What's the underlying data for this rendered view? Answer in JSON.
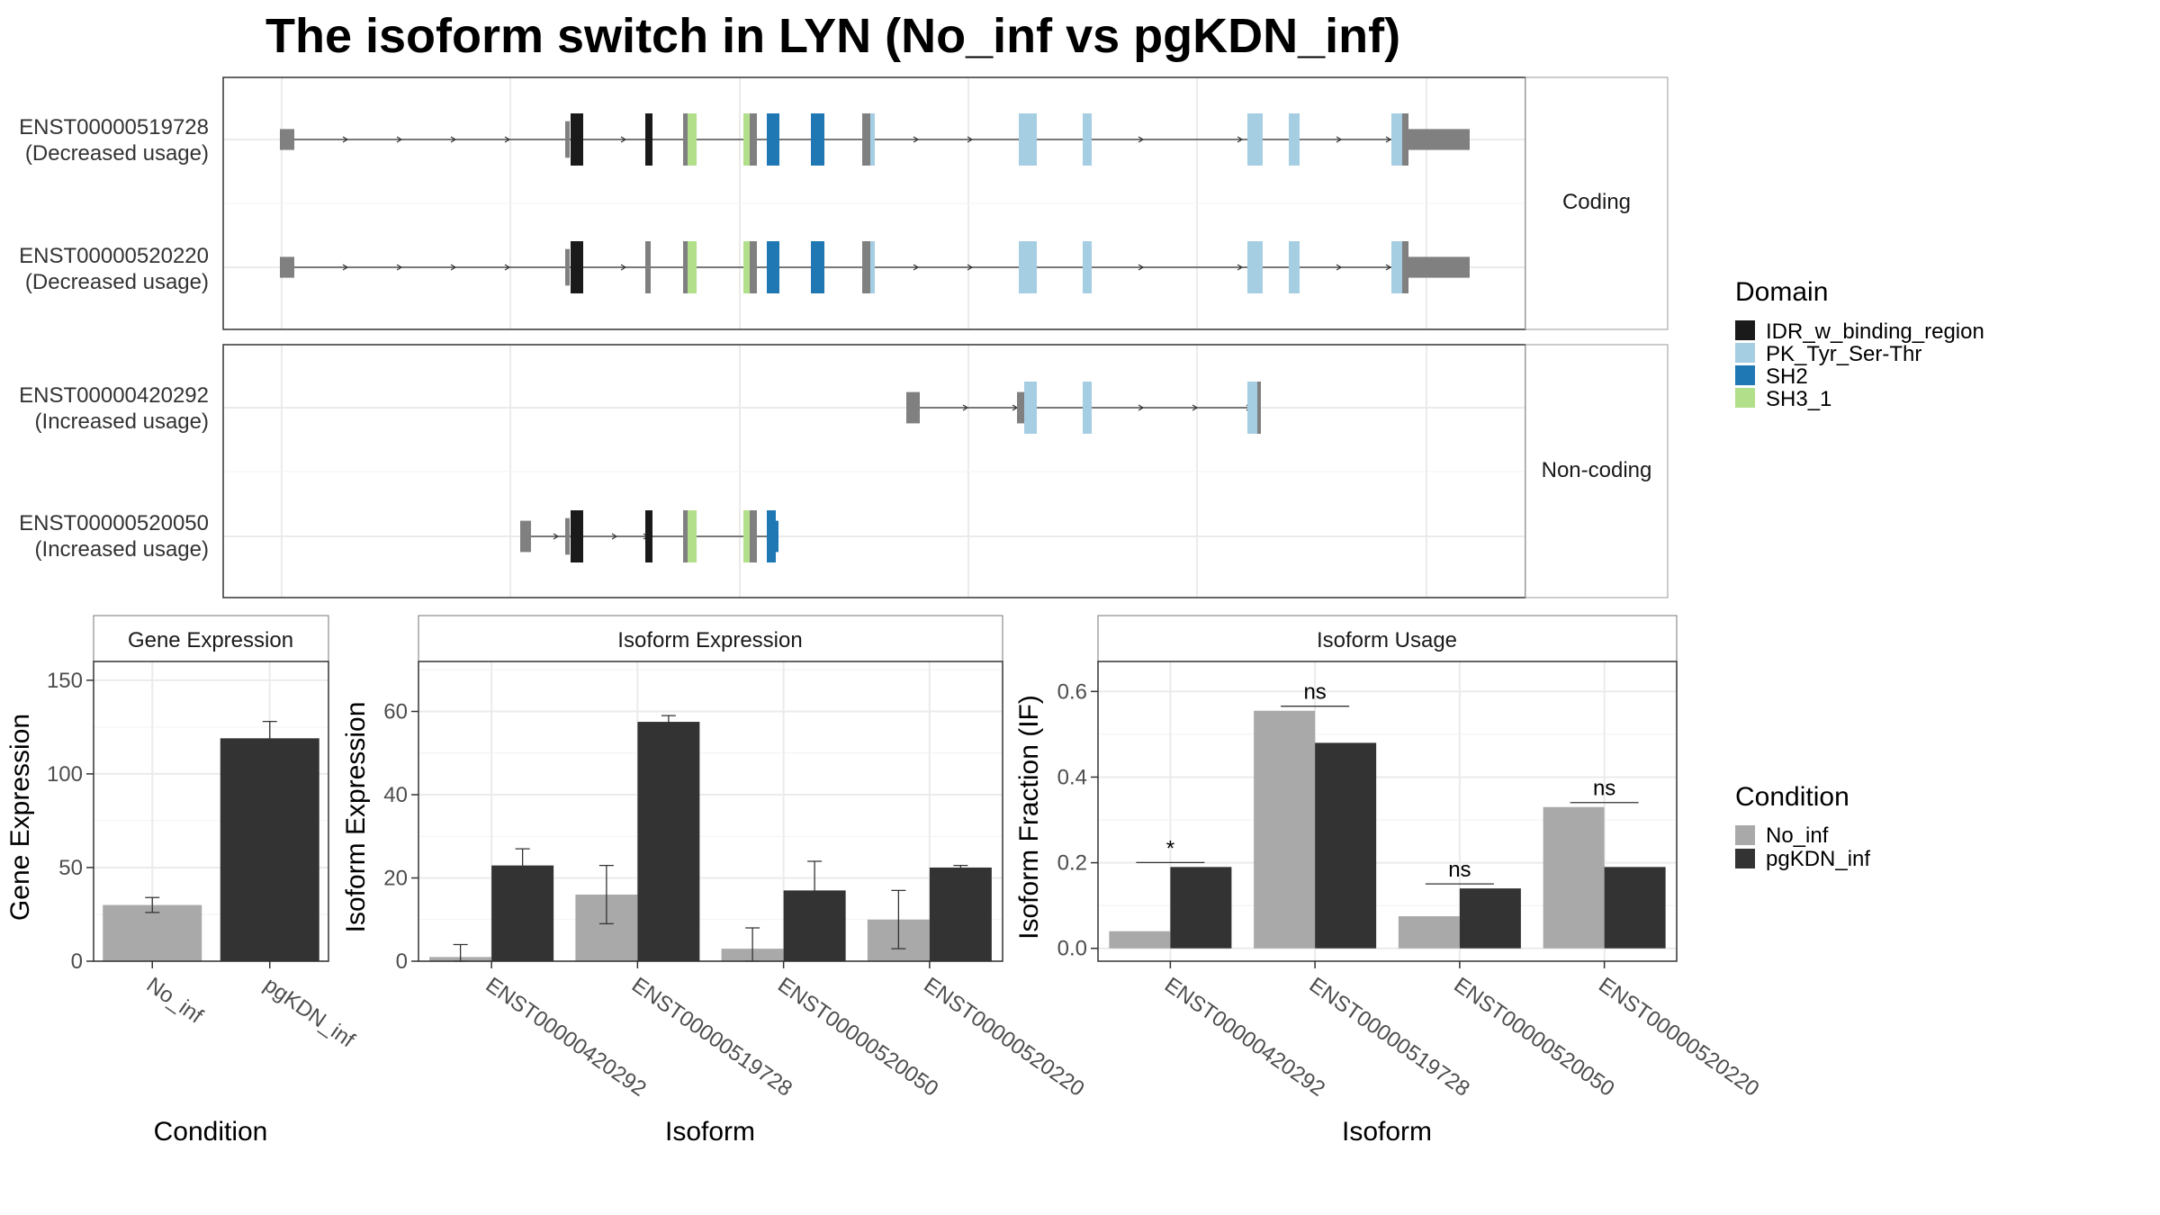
{
  "title": "The isoform switch in LYN (No_inf vs pgKDN_inf)",
  "structure": {
    "transcripts": [
      {
        "id": "ENST00000519728",
        "usage": "(Decreased usage)",
        "group": "Coding"
      },
      {
        "id": "ENST00000520220",
        "usage": "(Decreased usage)",
        "group": "Coding"
      },
      {
        "id": "ENST00000420292",
        "usage": "(Increased usage)",
        "group": "Non-coding"
      },
      {
        "id": "ENST00000520050",
        "usage": "(Increased usage)",
        "group": "Non-coding"
      }
    ],
    "facets": [
      "Coding",
      "Non-coding"
    ]
  },
  "domain_legend": {
    "title": "Domain",
    "items": [
      {
        "label": "IDR_w_binding_region",
        "color": "#1a1a1a"
      },
      {
        "label": "PK_Tyr_Ser-Thr",
        "color": "#a6cee3"
      },
      {
        "label": "SH2",
        "color": "#1f78b4"
      },
      {
        "label": "SH3_1",
        "color": "#b2df8a"
      }
    ]
  },
  "condition_legend": {
    "title": "Condition",
    "items": [
      {
        "label": "No_inf",
        "color": "#a9a9a9"
      },
      {
        "label": "pgKDN_inf",
        "color": "#333333"
      }
    ]
  },
  "chart_data": [
    {
      "type": "bar",
      "title": "Gene Expression",
      "xlabel": "Condition",
      "ylabel": "Gene Expression",
      "categories": [
        "No_inf",
        "pgKDN_inf"
      ],
      "values": [
        30,
        119
      ],
      "errors": [
        [
          26,
          34
        ],
        [
          110,
          128
        ]
      ],
      "colors": [
        "#a9a9a9",
        "#333333"
      ],
      "ylim": [
        0,
        160
      ],
      "yticks": [
        0,
        50,
        100,
        150
      ]
    },
    {
      "type": "bar",
      "title": "Isoform Expression",
      "xlabel": "Isoform",
      "ylabel": "Isoform Expression",
      "categories": [
        "ENST00000420292",
        "ENST00000519728",
        "ENST00000520050",
        "ENST00000520220"
      ],
      "series": [
        {
          "name": "No_inf",
          "values": [
            1,
            16,
            3,
            10
          ],
          "errors": [
            [
              0,
              4
            ],
            [
              9,
              23
            ],
            [
              0,
              8
            ],
            [
              3,
              17
            ]
          ],
          "color": "#a9a9a9"
        },
        {
          "name": "pgKDN_inf",
          "values": [
            23,
            57.5,
            17,
            22.5
          ],
          "errors": [
            [
              19,
              27
            ],
            [
              56,
              59
            ],
            [
              10,
              24
            ],
            [
              22,
              23
            ]
          ],
          "color": "#333333"
        }
      ],
      "ylim": [
        0,
        72
      ],
      "yticks": [
        0,
        20,
        40,
        60
      ]
    },
    {
      "type": "bar",
      "title": "Isoform Usage",
      "xlabel": "Isoform",
      "ylabel": "Isoform Fraction (IF)",
      "categories": [
        "ENST00000420292",
        "ENST00000519728",
        "ENST00000520050",
        "ENST00000520220"
      ],
      "series": [
        {
          "name": "No_inf",
          "values": [
            0.04,
            0.555,
            0.075,
            0.33
          ],
          "color": "#a9a9a9"
        },
        {
          "name": "pgKDN_inf",
          "values": [
            0.19,
            0.48,
            0.14,
            0.19
          ],
          "color": "#333333"
        }
      ],
      "significance": [
        "*",
        "ns",
        "ns",
        "ns"
      ],
      "ylim": [
        -0.03,
        0.67
      ],
      "yticks": [
        0.0,
        0.2,
        0.4,
        0.6
      ],
      "ytick_labels": [
        "0.0",
        "0.2",
        "0.4",
        "0.6"
      ]
    }
  ]
}
